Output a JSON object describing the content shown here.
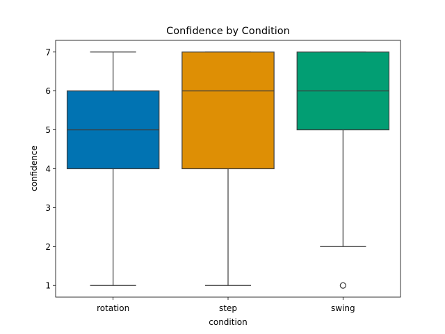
{
  "chart_data": {
    "type": "box",
    "title": "Confidence by Condition",
    "xlabel": "condition",
    "ylabel": "confidence",
    "categories": [
      "rotation",
      "step",
      "swing"
    ],
    "ylim": [
      0.7,
      7.3
    ],
    "yticks": [
      1,
      2,
      3,
      4,
      5,
      6,
      7
    ],
    "grid": false,
    "boxes": [
      {
        "name": "rotation",
        "color": "#0173b2",
        "whisker_low": 1,
        "q1": 4,
        "median": 5,
        "q3": 6,
        "whisker_high": 7,
        "outliers": []
      },
      {
        "name": "step",
        "color": "#de8f05",
        "whisker_low": 1,
        "q1": 4,
        "median": 6,
        "q3": 7,
        "whisker_high": 7,
        "outliers": []
      },
      {
        "name": "swing",
        "color": "#029e73",
        "whisker_low": 2,
        "q1": 5,
        "median": 6,
        "q3": 7,
        "whisker_high": 7,
        "outliers": [
          1
        ]
      }
    ]
  }
}
